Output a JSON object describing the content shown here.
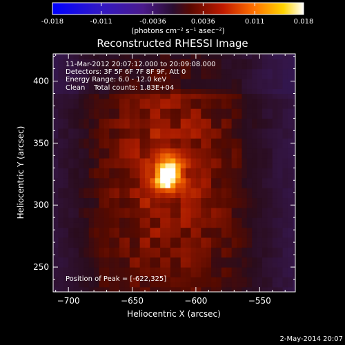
{
  "chart_data": {
    "type": "heatmap",
    "title": "Reconstructed RHESSI Image",
    "xlabel": "Heliocentric X (arcsec)",
    "ylabel": "Heliocentric Y (arcsec)",
    "xlim": [
      -712,
      -522
    ],
    "ylim": [
      230,
      422
    ],
    "xticks": [
      -700,
      -650,
      -600,
      -550
    ],
    "yticks": [
      250,
      300,
      350,
      400
    ],
    "colorbar": {
      "colormap": "RHESSI flame (blue-purple-red-yellow-white)",
      "range": [
        -0.018,
        0.018
      ],
      "ticks": [
        "-0.018",
        "-0.011",
        "-0.0036",
        "0.0036",
        "0.011",
        "0.018"
      ],
      "unit_label": "(photons cm⁻² s⁻¹ asec⁻²)"
    },
    "annotations": [
      "11-Mar-2012 20:07:12.000 to 20:09:08.000",
      "Detectors: 3F 5F 6F 7F 8F 9F, Att 0",
      "Energy Range: 6.0 - 12.0 keV",
      "Clean    Total counts: 1.83E+04"
    ],
    "peak_label": "Position of Peak = [-622,325]",
    "peak": {
      "x": -622,
      "y": 325,
      "value": 0.018
    },
    "grid": false
  },
  "footer": {
    "date": "2-May-2014 20:07"
  },
  "colors": {
    "background": "#000000",
    "foreground": "#ffffff",
    "colormap_stops": [
      "#0000ff",
      "#4a1ab0",
      "#3a1040",
      "#4b0d00",
      "#c01a00",
      "#ff8000",
      "#ffd000",
      "#ffffff"
    ]
  }
}
